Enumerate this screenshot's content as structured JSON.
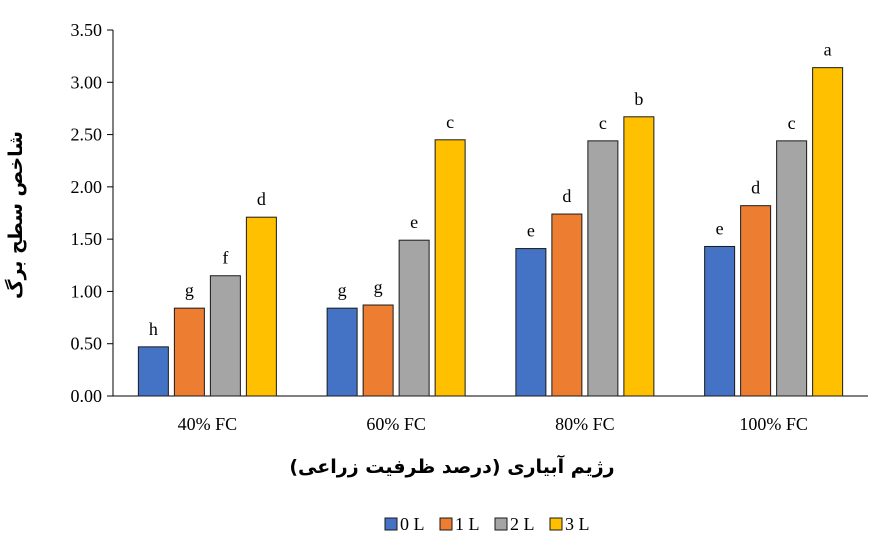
{
  "chart_data": {
    "type": "bar",
    "title": "",
    "xlabel": "رژیم آبیاری (درصد ظرفیت زراعی)",
    "ylabel": "شاخص سطح برگ",
    "ylim": [
      0,
      3.5
    ],
    "yticks": [
      "0.00",
      "0.50",
      "1.00",
      "1.50",
      "2.00",
      "2.50",
      "3.00",
      "3.50"
    ],
    "categories": [
      "40% FC",
      "60% FC",
      "80% FC",
      "100% FC"
    ],
    "series": [
      {
        "name": "0 L",
        "color": "#4472C4",
        "values": [
          0.47,
          0.84,
          1.41,
          1.43
        ],
        "labels": [
          "h",
          "g",
          "e",
          "e"
        ]
      },
      {
        "name": "1 L",
        "color": "#ED7D31",
        "values": [
          0.84,
          0.87,
          1.74,
          1.82
        ],
        "labels": [
          "g",
          "g",
          "d",
          "d"
        ]
      },
      {
        "name": "2 L",
        "color": "#A5A5A5",
        "values": [
          1.15,
          1.49,
          2.44,
          2.44
        ],
        "labels": [
          "f",
          "e",
          "c",
          "c"
        ]
      },
      {
        "name": "3 L",
        "color": "#FFC000",
        "values": [
          1.71,
          2.45,
          2.67,
          3.14
        ],
        "labels": [
          "d",
          "c",
          "b",
          "a"
        ]
      }
    ],
    "grid": false,
    "legend_position": "bottom"
  }
}
